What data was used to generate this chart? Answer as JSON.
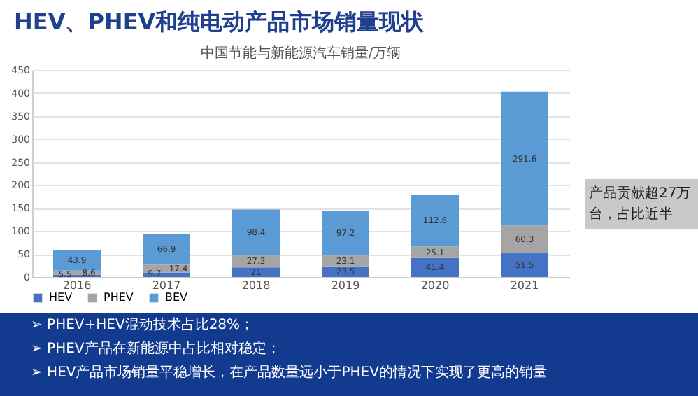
{
  "chart_data": {
    "type": "bar",
    "stacked": true,
    "title": "HEV、PHEV和纯电动产品市场销量现状",
    "subtitle": "中国节能与新能源汽车销量/万辆",
    "categories": [
      "2016",
      "2017",
      "2018",
      "2019",
      "2020",
      "2021"
    ],
    "series": [
      {
        "name": "HEV",
        "color": "#4472c4",
        "values": [
          5.5,
          9.7,
          21,
          23.5,
          41.4,
          51.5
        ]
      },
      {
        "name": "PHEV",
        "color": "#a5a5a5",
        "values": [
          8.6,
          17.4,
          27.3,
          23.1,
          25.1,
          60.3
        ]
      },
      {
        "name": "BEV",
        "color": "#5b9bd5",
        "values": [
          43.9,
          66.9,
          98.4,
          97.2,
          112.6,
          291.6
        ]
      }
    ],
    "ylim": [
      0,
      450
    ],
    "yticks": [
      0,
      50,
      100,
      150,
      200,
      250,
      300,
      350,
      400,
      450
    ],
    "grid": "y",
    "legend": "bottom",
    "data_labels": true,
    "annotations": [
      "产品贡献超27万台，占比近半",
      "➢ PHEV+HEV混动技术占比28%；",
      "➢ PHEV产品在新能源中占比相对稳定；",
      "➢ HEV产品市场销量平稳增长，在产品数量远小于PHEV的情况下实现了更高的销量"
    ]
  }
}
